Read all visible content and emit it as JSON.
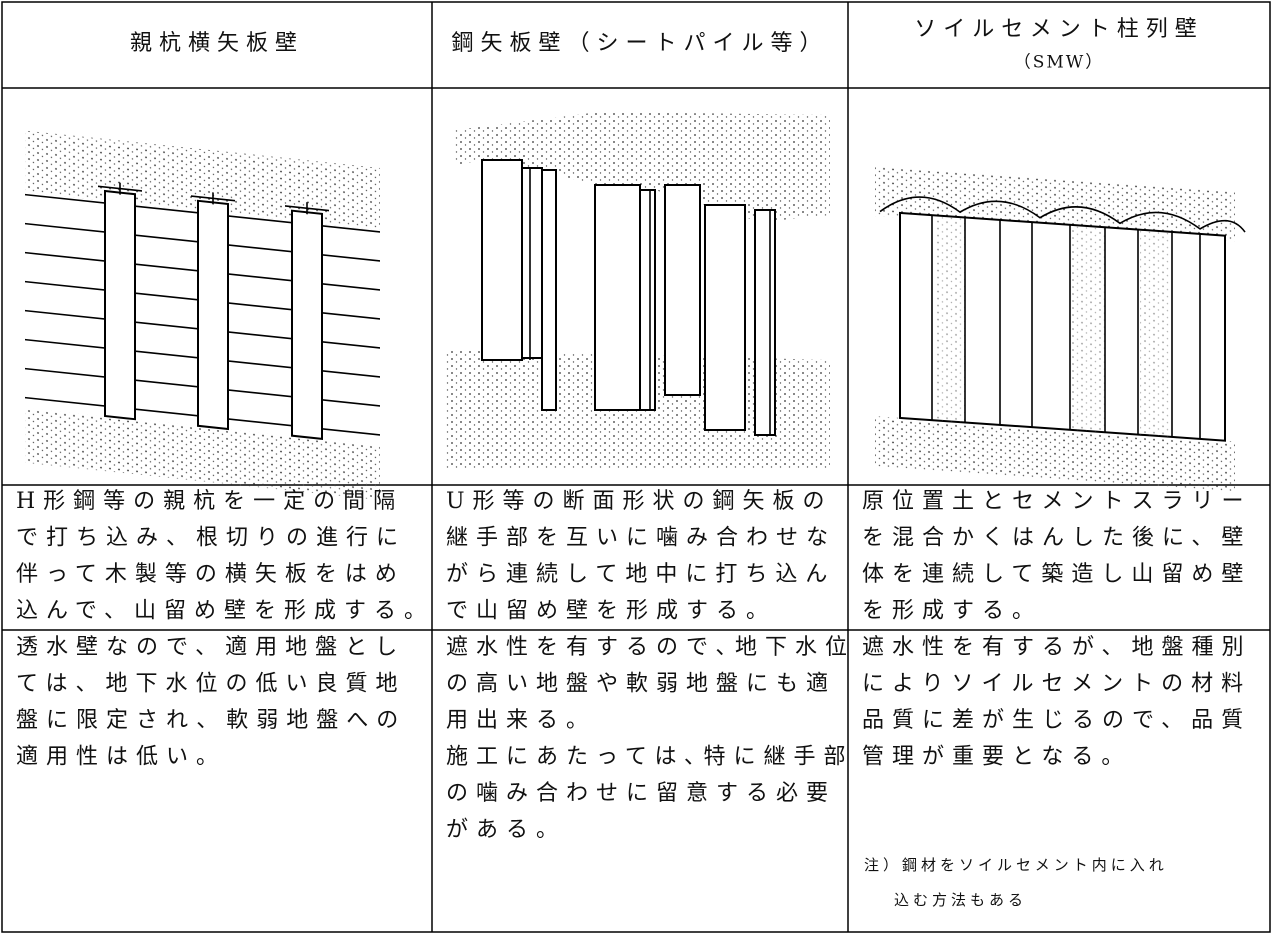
{
  "table": {
    "header": [
      [
        "親杭横矢板壁"
      ],
      [
        "鋼矢板壁（シートパイル等）"
      ],
      [
        "ソイルセメント柱列壁",
        "（SMW）"
      ]
    ],
    "descriptions": [
      [
        "H形鋼等の親杭を一定の間隔",
        "で打ち込み、根切りの進行に",
        "伴って木製等の横矢板をはめ",
        "込んで、山留め壁を形成する。"
      ],
      [
        "U形等の断面形状の鋼矢板の",
        "継手部を互いに噛み合わせな",
        "がら連続して地中に打ち込ん",
        "で山留め壁を形成する。"
      ],
      [
        "原位置土とセメントスラリー",
        "を混合かくはんした後に、壁",
        "体を連続して築造し山留め壁",
        "を形成する。"
      ]
    ],
    "features": [
      [
        "透水壁なので、適用地盤とし",
        "ては、地下水位の低い良質地",
        "盤に限定され、軟弱地盤への",
        "適用性は低い。"
      ],
      [
        "遮水性を有するので､地下水位",
        "の高い地盤や軟弱地盤にも適",
        "用出来る。",
        "施工にあたっては､特に継手部",
        "の噛み合わせに留意する必要",
        "がある。"
      ],
      [
        "遮水性を有するが、地盤種別",
        "によりソイルセメントの材料",
        "品質に差が生じるので、品質",
        "管理が重要となる。"
      ]
    ],
    "note": [
      "注）鋼材をソイルセメント内に入れ",
      "込む方法もある"
    ]
  }
}
